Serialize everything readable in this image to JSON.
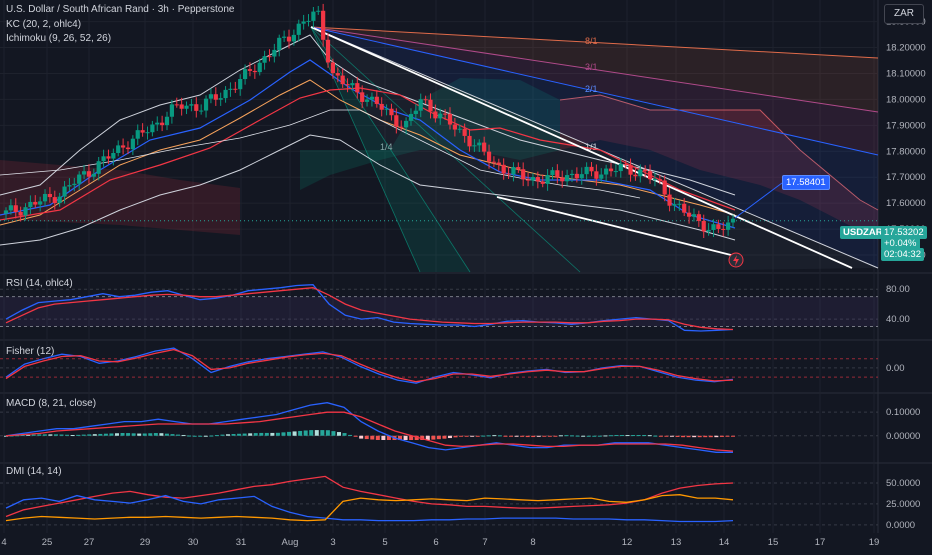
{
  "header": {
    "symbol_line": "U.S. Dollar / South African Rand · 3h · Pepperstone",
    "kc_line": "KC (20, 2, ohlc4)",
    "ichimoku_line": "Ichimoku (9, 26, 52, 26)",
    "currency": "ZAR"
  },
  "price_panel": {
    "last_symbol": "USDZAR",
    "last_price": "17.53202",
    "change": "+0.04%",
    "countdown": "02:04:32",
    "target_label": "17.58401",
    "fib_labels": [
      "8/1",
      "3/1",
      "2/1",
      "1/1",
      "1/4"
    ],
    "colors": {
      "up": "#089981",
      "down": "#f23645",
      "accent": "#2962ff"
    }
  },
  "chart_data": [
    {
      "type": "candlestick",
      "title": "U.S. Dollar / South African Rand · 3h · Pepperstone",
      "ylim": [
        17.35,
        18.36
      ],
      "yticks": [
        "18.30000",
        "18.20000",
        "18.10000",
        "18.00000",
        "17.90000",
        "17.80000",
        "17.70000",
        "17.60000",
        "17.50000",
        "17.40000"
      ],
      "x_ticks": [
        "4",
        "25",
        "27",
        "29",
        "30",
        "31",
        "Aug",
        "3",
        "5",
        "6",
        "7",
        "8",
        "12",
        "13",
        "14",
        "15",
        "17",
        "19"
      ],
      "close_path": [
        17.56,
        17.58,
        17.6,
        17.62,
        17.65,
        17.7,
        17.74,
        17.78,
        17.83,
        17.86,
        17.9,
        17.95,
        17.98,
        17.97,
        18.0,
        18.04,
        18.08,
        18.14,
        18.19,
        18.24,
        18.3,
        18.33,
        18.1,
        18.05,
        18.02,
        17.98,
        17.93,
        17.9,
        18.0,
        17.95,
        17.9,
        17.86,
        17.8,
        17.75,
        17.72,
        17.7,
        17.69,
        17.7,
        17.71,
        17.71,
        17.72,
        17.73,
        17.73,
        17.72,
        17.67,
        17.6,
        17.55,
        17.52,
        17.49,
        17.53
      ],
      "last": 17.53202
    },
    {
      "type": "line",
      "title": "RSI (14, ohlc4)",
      "yticks": [
        "80.00",
        "40.00"
      ],
      "ylim": [
        20,
        95
      ],
      "series": [
        {
          "values": [
            40,
            52,
            62,
            64,
            66,
            70,
            74,
            70,
            72,
            76,
            78,
            72,
            66,
            68,
            72,
            78,
            80,
            82,
            85,
            86,
            60,
            45,
            40,
            42,
            36,
            34,
            33,
            32,
            32,
            30,
            33,
            37,
            38,
            36,
            35,
            33,
            35,
            38,
            40,
            42,
            40,
            38,
            25,
            24,
            25,
            26
          ]
        },
        {
          "values": [
            35,
            45,
            55,
            60,
            62,
            64,
            66,
            68,
            70,
            72,
            73,
            72,
            70,
            70,
            72,
            74,
            76,
            78,
            80,
            82,
            72,
            60,
            52,
            48,
            44,
            40,
            38,
            36,
            35,
            34,
            34,
            35,
            36,
            36,
            36,
            35,
            35,
            37,
            38,
            40,
            40,
            39,
            33,
            29,
            27,
            26
          ]
        }
      ]
    },
    {
      "type": "line",
      "title": "Fisher (12)",
      "yticks": [
        "0.00"
      ],
      "ylim": [
        -2.5,
        3.0
      ],
      "series": [
        {
          "values": [
            -1.2,
            0.5,
            1.2,
            1.8,
            1.5,
            0.6,
            0.9,
            1.5,
            2.2,
            2.6,
            1.2,
            -0.6,
            0.2,
            0.8,
            1.2,
            1.5,
            1.8,
            2.1,
            1.4,
            0.2,
            -0.8,
            -1.6,
            -2.0,
            -1.2,
            -0.6,
            -0.9,
            -1.3,
            -0.7,
            -0.4,
            -0.2,
            -0.6,
            -0.5,
            0.0,
            0.3,
            0.2,
            -0.5,
            -1.2,
            -1.6,
            -1.8,
            -1.5
          ]
        },
        {
          "values": [
            -1.4,
            0.2,
            0.9,
            1.5,
            1.6,
            0.9,
            0.8,
            1.3,
            1.9,
            2.4,
            1.6,
            -0.2,
            0.0,
            0.6,
            1.0,
            1.4,
            1.7,
            1.9,
            1.6,
            0.5,
            -0.5,
            -1.3,
            -1.8,
            -1.4,
            -0.8,
            -0.8,
            -1.1,
            -0.8,
            -0.5,
            -0.3,
            -0.5,
            -0.5,
            -0.1,
            0.2,
            0.2,
            -0.3,
            -1.0,
            -1.4,
            -1.7,
            -1.6
          ]
        }
      ]
    },
    {
      "type": "bar",
      "title": "MACD (8, 21, close)",
      "yticks": [
        "0.10000",
        "0.00000"
      ],
      "ylim": [
        -0.09,
        0.16
      ],
      "series": [
        {
          "name": "",
          "values": [
            0.0,
            0.01,
            0.02,
            0.03,
            0.03,
            0.04,
            0.05,
            0.06,
            0.06,
            0.07,
            0.06,
            0.05,
            0.05,
            0.06,
            0.07,
            0.08,
            0.09,
            0.11,
            0.13,
            0.14,
            0.12,
            0.06,
            0.02,
            -0.01,
            -0.03,
            -0.05,
            -0.06,
            -0.05,
            -0.04,
            -0.03,
            -0.04,
            -0.05,
            -0.05,
            -0.04,
            -0.04,
            -0.04,
            -0.03,
            -0.03,
            -0.03,
            -0.04,
            -0.05,
            -0.06,
            -0.07,
            -0.07
          ]
        },
        {
          "name": "",
          "values": [
            0.0,
            0.005,
            0.01,
            0.02,
            0.025,
            0.03,
            0.035,
            0.04,
            0.045,
            0.05,
            0.05,
            0.05,
            0.05,
            0.05,
            0.055,
            0.06,
            0.07,
            0.08,
            0.09,
            0.1,
            0.1,
            0.08,
            0.05,
            0.02,
            0.0,
            -0.02,
            -0.04,
            -0.045,
            -0.04,
            -0.035,
            -0.035,
            -0.04,
            -0.045,
            -0.045,
            -0.04,
            -0.04,
            -0.035,
            -0.035,
            -0.035,
            -0.035,
            -0.04,
            -0.05,
            -0.06,
            -0.065
          ]
        }
      ]
    },
    {
      "type": "line",
      "title": "DMI (14, 14)",
      "yticks": [
        "50.0000",
        "25.0000",
        "0.0000"
      ],
      "ylim": [
        -5,
        68
      ],
      "series": [
        {
          "values": [
            10,
            18,
            22,
            26,
            30,
            34,
            38,
            40,
            36,
            33,
            32,
            35,
            38,
            42,
            46,
            48,
            52,
            55,
            58,
            45,
            40,
            36,
            32,
            28,
            25,
            24,
            22,
            22,
            21,
            20,
            20,
            21,
            22,
            23,
            24,
            26,
            30,
            38,
            44,
            47,
            49,
            50
          ]
        },
        {
          "values": [
            20,
            30,
            32,
            28,
            35,
            30,
            28,
            26,
            30,
            35,
            28,
            25,
            30,
            32,
            34,
            22,
            15,
            10,
            8,
            6,
            6,
            5,
            5,
            5,
            6,
            6,
            7,
            7,
            8,
            8,
            8,
            8,
            7,
            7,
            7,
            6,
            6,
            5,
            4,
            4,
            4,
            5
          ]
        },
        {
          "values": [
            5,
            8,
            10,
            9,
            8,
            7,
            8,
            9,
            9,
            10,
            9,
            8,
            9,
            10,
            9,
            8,
            6,
            5,
            6,
            28,
            32,
            30,
            29,
            30,
            31,
            30,
            29,
            32,
            31,
            30,
            29,
            30,
            31,
            32,
            28,
            27,
            30,
            35,
            36,
            32,
            32,
            30
          ]
        }
      ]
    }
  ],
  "panes": {
    "rsi_label": "RSI (14, ohlc4)",
    "fisher_label": "Fisher (12)",
    "macd_label": "MACD (8, 21, close)",
    "dmi_label": "DMI (14, 14)"
  }
}
